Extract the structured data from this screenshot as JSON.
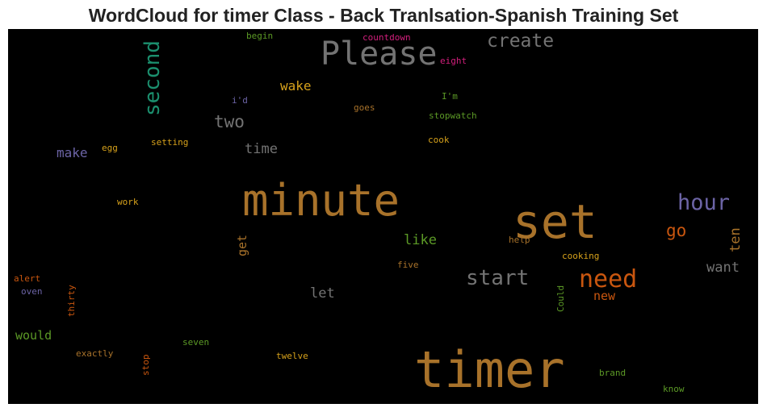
{
  "title": "WordCloud for timer Class - Back Tranlsation-Spanish Training Set",
  "words": {
    "begin": "begin",
    "countdown": "countdown",
    "eight": "eight",
    "please": "Please",
    "create": "create",
    "second": "second",
    "wake": "wake",
    "id": "i'd",
    "goes": "goes",
    "im": "I'm",
    "stopwatch": "stopwatch",
    "two": "two",
    "make": "make",
    "egg": "egg",
    "setting": "setting",
    "time": "time",
    "cook": "cook",
    "minute": "minute",
    "set": "set",
    "hour": "hour",
    "work": "work",
    "go": "go",
    "ten": "ten",
    "get": "get",
    "like": "like",
    "help": "help",
    "cooking": "cooking",
    "want": "want",
    "five": "five",
    "start": "start",
    "need": "need",
    "alert": "alert",
    "oven": "oven",
    "thirty": "thirty",
    "let": "let",
    "new": "new",
    "could": "Could",
    "would": "would",
    "seven": "seven",
    "exactly": "exactly",
    "stop": "stop",
    "twelve": "twelve",
    "timer": "timer",
    "brand": "brand",
    "know": "know"
  },
  "colors": {
    "background": "#000000",
    "gray": "#737373",
    "orange": "#a8722a",
    "olive_orange": "#c08a1e",
    "green": "#5c9a26",
    "teal": "#1b8f6e",
    "purple": "#6c64a6",
    "magenta": "#d41f7d",
    "red_orange": "#c9560f",
    "gold": "#d6a11b"
  }
}
